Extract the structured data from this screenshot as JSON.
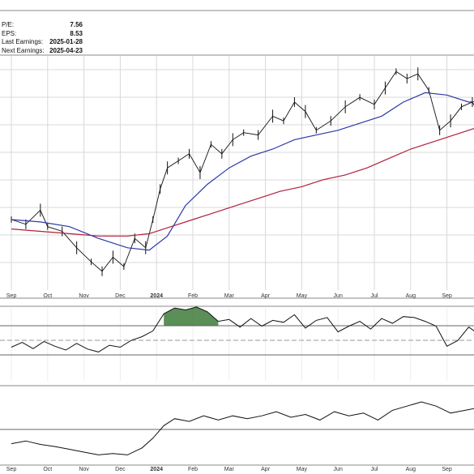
{
  "info_box": [
    {
      "label": "P/E:",
      "value": "7.56"
    },
    {
      "label": "EPS:",
      "value": "8.53"
    },
    {
      "label": "Last Earnings:",
      "value": "2025-01-28"
    },
    {
      "label": "Next Earnings:",
      "value": "2025-04-23"
    }
  ],
  "colors": {
    "price": "#111111",
    "ma50": "#2b3aa8",
    "ma200": "#b01f3a",
    "rsi_fill": "#3f7a3a",
    "grid": "#d8d8d8",
    "frame": "#888888"
  },
  "chart_data": {
    "type": "line",
    "x_labels": [
      "Sep",
      "Oct",
      "Nov",
      "Dec",
      "2024",
      "Feb",
      "Mar",
      "Apr",
      "May",
      "Jun",
      "Jul",
      "Aug",
      "Sep"
    ],
    "bold_x_labels": [
      "2024"
    ],
    "panels": [
      {
        "name": "price",
        "series": [
          {
            "key": "price",
            "style": "ohlc-bars",
            "points": [
              [
                0,
                0.3
              ],
              [
                0.4,
                0.28
              ],
              [
                0.8,
                0.34
              ],
              [
                1.0,
                0.27
              ],
              [
                1.4,
                0.25
              ],
              [
                1.8,
                0.18
              ],
              [
                2.2,
                0.12
              ],
              [
                2.5,
                0.08
              ],
              [
                2.8,
                0.14
              ],
              [
                3.1,
                0.1
              ],
              [
                3.4,
                0.22
              ],
              [
                3.7,
                0.18
              ],
              [
                3.9,
                0.3
              ],
              [
                4.1,
                0.43
              ],
              [
                4.3,
                0.52
              ],
              [
                4.6,
                0.55
              ],
              [
                4.9,
                0.58
              ],
              [
                5.2,
                0.5
              ],
              [
                5.5,
                0.62
              ],
              [
                5.8,
                0.58
              ],
              [
                6.1,
                0.64
              ],
              [
                6.4,
                0.67
              ],
              [
                6.8,
                0.66
              ],
              [
                7.2,
                0.74
              ],
              [
                7.5,
                0.72
              ],
              [
                7.8,
                0.8
              ],
              [
                8.1,
                0.76
              ],
              [
                8.4,
                0.68
              ],
              [
                8.8,
                0.72
              ],
              [
                9.2,
                0.78
              ],
              [
                9.6,
                0.82
              ],
              [
                10.0,
                0.79
              ],
              [
                10.3,
                0.86
              ],
              [
                10.6,
                0.93
              ],
              [
                10.9,
                0.9
              ],
              [
                11.2,
                0.92
              ],
              [
                11.5,
                0.85
              ],
              [
                11.8,
                0.68
              ],
              [
                12.1,
                0.72
              ],
              [
                12.4,
                0.78
              ],
              [
                12.7,
                0.8
              ],
              [
                13.0,
                0.72
              ],
              [
                13.3,
                0.85
              ],
              [
                13.6,
                0.88
              ],
              [
                13.8,
                0.84
              ]
            ]
          },
          {
            "key": "ma50",
            "style": "line",
            "points": [
              [
                0,
                0.3
              ],
              [
                0.8,
                0.29
              ],
              [
                1.6,
                0.27
              ],
              [
                2.4,
                0.22
              ],
              [
                3.2,
                0.18
              ],
              [
                3.8,
                0.17
              ],
              [
                4.3,
                0.23
              ],
              [
                4.8,
                0.36
              ],
              [
                5.4,
                0.45
              ],
              [
                6.0,
                0.52
              ],
              [
                6.6,
                0.57
              ],
              [
                7.2,
                0.6
              ],
              [
                7.8,
                0.64
              ],
              [
                8.4,
                0.66
              ],
              [
                9.0,
                0.68
              ],
              [
                9.6,
                0.71
              ],
              [
                10.2,
                0.74
              ],
              [
                10.8,
                0.8
              ],
              [
                11.4,
                0.84
              ],
              [
                12.0,
                0.83
              ],
              [
                12.6,
                0.8
              ],
              [
                13.2,
                0.81
              ],
              [
                13.8,
                0.82
              ]
            ]
          },
          {
            "key": "ma200",
            "style": "line",
            "points": [
              [
                0,
                0.26
              ],
              [
                0.8,
                0.25
              ],
              [
                1.6,
                0.24
              ],
              [
                2.4,
                0.23
              ],
              [
                3.2,
                0.23
              ],
              [
                3.8,
                0.24
              ],
              [
                4.4,
                0.27
              ],
              [
                5.0,
                0.3
              ],
              [
                5.6,
                0.33
              ],
              [
                6.2,
                0.36
              ],
              [
                6.8,
                0.39
              ],
              [
                7.4,
                0.42
              ],
              [
                8.0,
                0.44
              ],
              [
                8.6,
                0.47
              ],
              [
                9.2,
                0.49
              ],
              [
                9.8,
                0.52
              ],
              [
                10.4,
                0.56
              ],
              [
                11.0,
                0.6
              ],
              [
                11.6,
                0.63
              ],
              [
                12.2,
                0.66
              ],
              [
                12.8,
                0.69
              ],
              [
                13.4,
                0.72
              ],
              [
                13.8,
                0.74
              ]
            ]
          }
        ]
      },
      {
        "name": "rsi",
        "series": [
          {
            "key": "rsi",
            "style": "line",
            "points": [
              [
                0,
                0.28
              ],
              [
                0.3,
                0.38
              ],
              [
                0.6,
                0.25
              ],
              [
                0.9,
                0.4
              ],
              [
                1.2,
                0.3
              ],
              [
                1.5,
                0.22
              ],
              [
                1.8,
                0.36
              ],
              [
                2.1,
                0.24
              ],
              [
                2.4,
                0.18
              ],
              [
                2.7,
                0.32
              ],
              [
                3.0,
                0.28
              ],
              [
                3.3,
                0.42
              ],
              [
                3.6,
                0.5
              ],
              [
                3.9,
                0.62
              ],
              [
                4.2,
                0.98
              ],
              [
                4.5,
                1.1
              ],
              [
                4.8,
                1.06
              ],
              [
                5.1,
                1.12
              ],
              [
                5.4,
                1.02
              ],
              [
                5.7,
                0.82
              ],
              [
                6.0,
                0.86
              ],
              [
                6.3,
                0.7
              ],
              [
                6.6,
                0.88
              ],
              [
                6.9,
                0.72
              ],
              [
                7.2,
                0.84
              ],
              [
                7.5,
                0.8
              ],
              [
                7.8,
                0.96
              ],
              [
                8.1,
                0.68
              ],
              [
                8.4,
                0.84
              ],
              [
                8.7,
                0.9
              ],
              [
                9.0,
                0.6
              ],
              [
                9.3,
                0.72
              ],
              [
                9.6,
                0.82
              ],
              [
                9.9,
                0.66
              ],
              [
                10.2,
                0.88
              ],
              [
                10.5,
                0.78
              ],
              [
                10.8,
                0.92
              ],
              [
                11.1,
                0.9
              ],
              [
                11.4,
                0.82
              ],
              [
                11.7,
                0.72
              ],
              [
                12.0,
                0.3
              ],
              [
                12.3,
                0.42
              ],
              [
                12.6,
                0.7
              ],
              [
                12.9,
                0.54
              ],
              [
                13.2,
                0.34
              ],
              [
                13.5,
                0.76
              ],
              [
                13.8,
                0.88
              ]
            ]
          }
        ]
      },
      {
        "name": "relative",
        "series": [
          {
            "key": "relative",
            "style": "line",
            "points": [
              [
                0,
                0.26
              ],
              [
                0.4,
                0.3
              ],
              [
                0.8,
                0.25
              ],
              [
                1.2,
                0.22
              ],
              [
                1.6,
                0.18
              ],
              [
                2.0,
                0.14
              ],
              [
                2.4,
                0.1
              ],
              [
                2.8,
                0.12
              ],
              [
                3.2,
                0.1
              ],
              [
                3.6,
                0.2
              ],
              [
                3.9,
                0.34
              ],
              [
                4.2,
                0.52
              ],
              [
                4.5,
                0.62
              ],
              [
                4.9,
                0.58
              ],
              [
                5.3,
                0.66
              ],
              [
                5.7,
                0.6
              ],
              [
                6.1,
                0.66
              ],
              [
                6.5,
                0.62
              ],
              [
                6.9,
                0.66
              ],
              [
                7.3,
                0.72
              ],
              [
                7.7,
                0.64
              ],
              [
                8.1,
                0.68
              ],
              [
                8.5,
                0.6
              ],
              [
                8.9,
                0.72
              ],
              [
                9.3,
                0.66
              ],
              [
                9.7,
                0.7
              ],
              [
                10.1,
                0.6
              ],
              [
                10.5,
                0.74
              ],
              [
                10.9,
                0.8
              ],
              [
                11.3,
                0.86
              ],
              [
                11.7,
                0.8
              ],
              [
                12.1,
                0.7
              ],
              [
                12.5,
                0.74
              ],
              [
                12.9,
                0.78
              ],
              [
                13.3,
                0.8
              ],
              [
                13.8,
                0.86
              ]
            ]
          }
        ]
      }
    ]
  }
}
